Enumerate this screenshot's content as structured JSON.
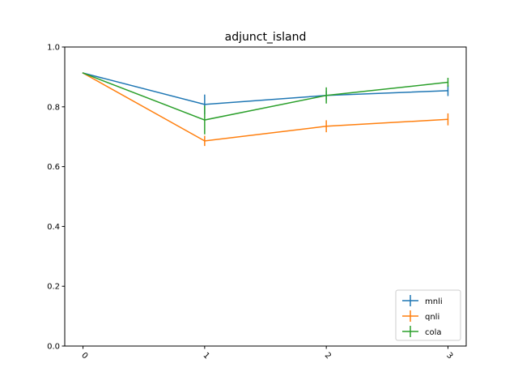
{
  "chart_data": {
    "type": "line",
    "title": "adjunct_island",
    "xlabel": "",
    "ylabel": "",
    "x": [
      0,
      1,
      2,
      3
    ],
    "xtick_labels": [
      "0",
      "1",
      "2",
      "3"
    ],
    "ylim": [
      0,
      1.0
    ],
    "yticks": [
      0.0,
      0.2,
      0.4,
      0.6,
      0.8,
      1.0
    ],
    "ytick_labels": [
      "0.0",
      "0.2",
      "0.4",
      "0.6",
      "0.8",
      "1.0"
    ],
    "grid": false,
    "legend_position": "bottom-right",
    "series": [
      {
        "name": "mnli",
        "color": "#1f77b4",
        "values": [
          0.913,
          0.808,
          0.838,
          0.854
        ],
        "errors": [
          0,
          0.033,
          0.015,
          0.018
        ]
      },
      {
        "name": "qnli",
        "color": "#ff7f0e",
        "values": [
          0.913,
          0.686,
          0.735,
          0.758
        ],
        "errors": [
          0,
          0.017,
          0.02,
          0.02
        ]
      },
      {
        "name": "cola",
        "color": "#2ca02c",
        "values": [
          0.913,
          0.756,
          0.838,
          0.882
        ],
        "errors": [
          0,
          0.048,
          0.027,
          0.015
        ]
      }
    ]
  }
}
